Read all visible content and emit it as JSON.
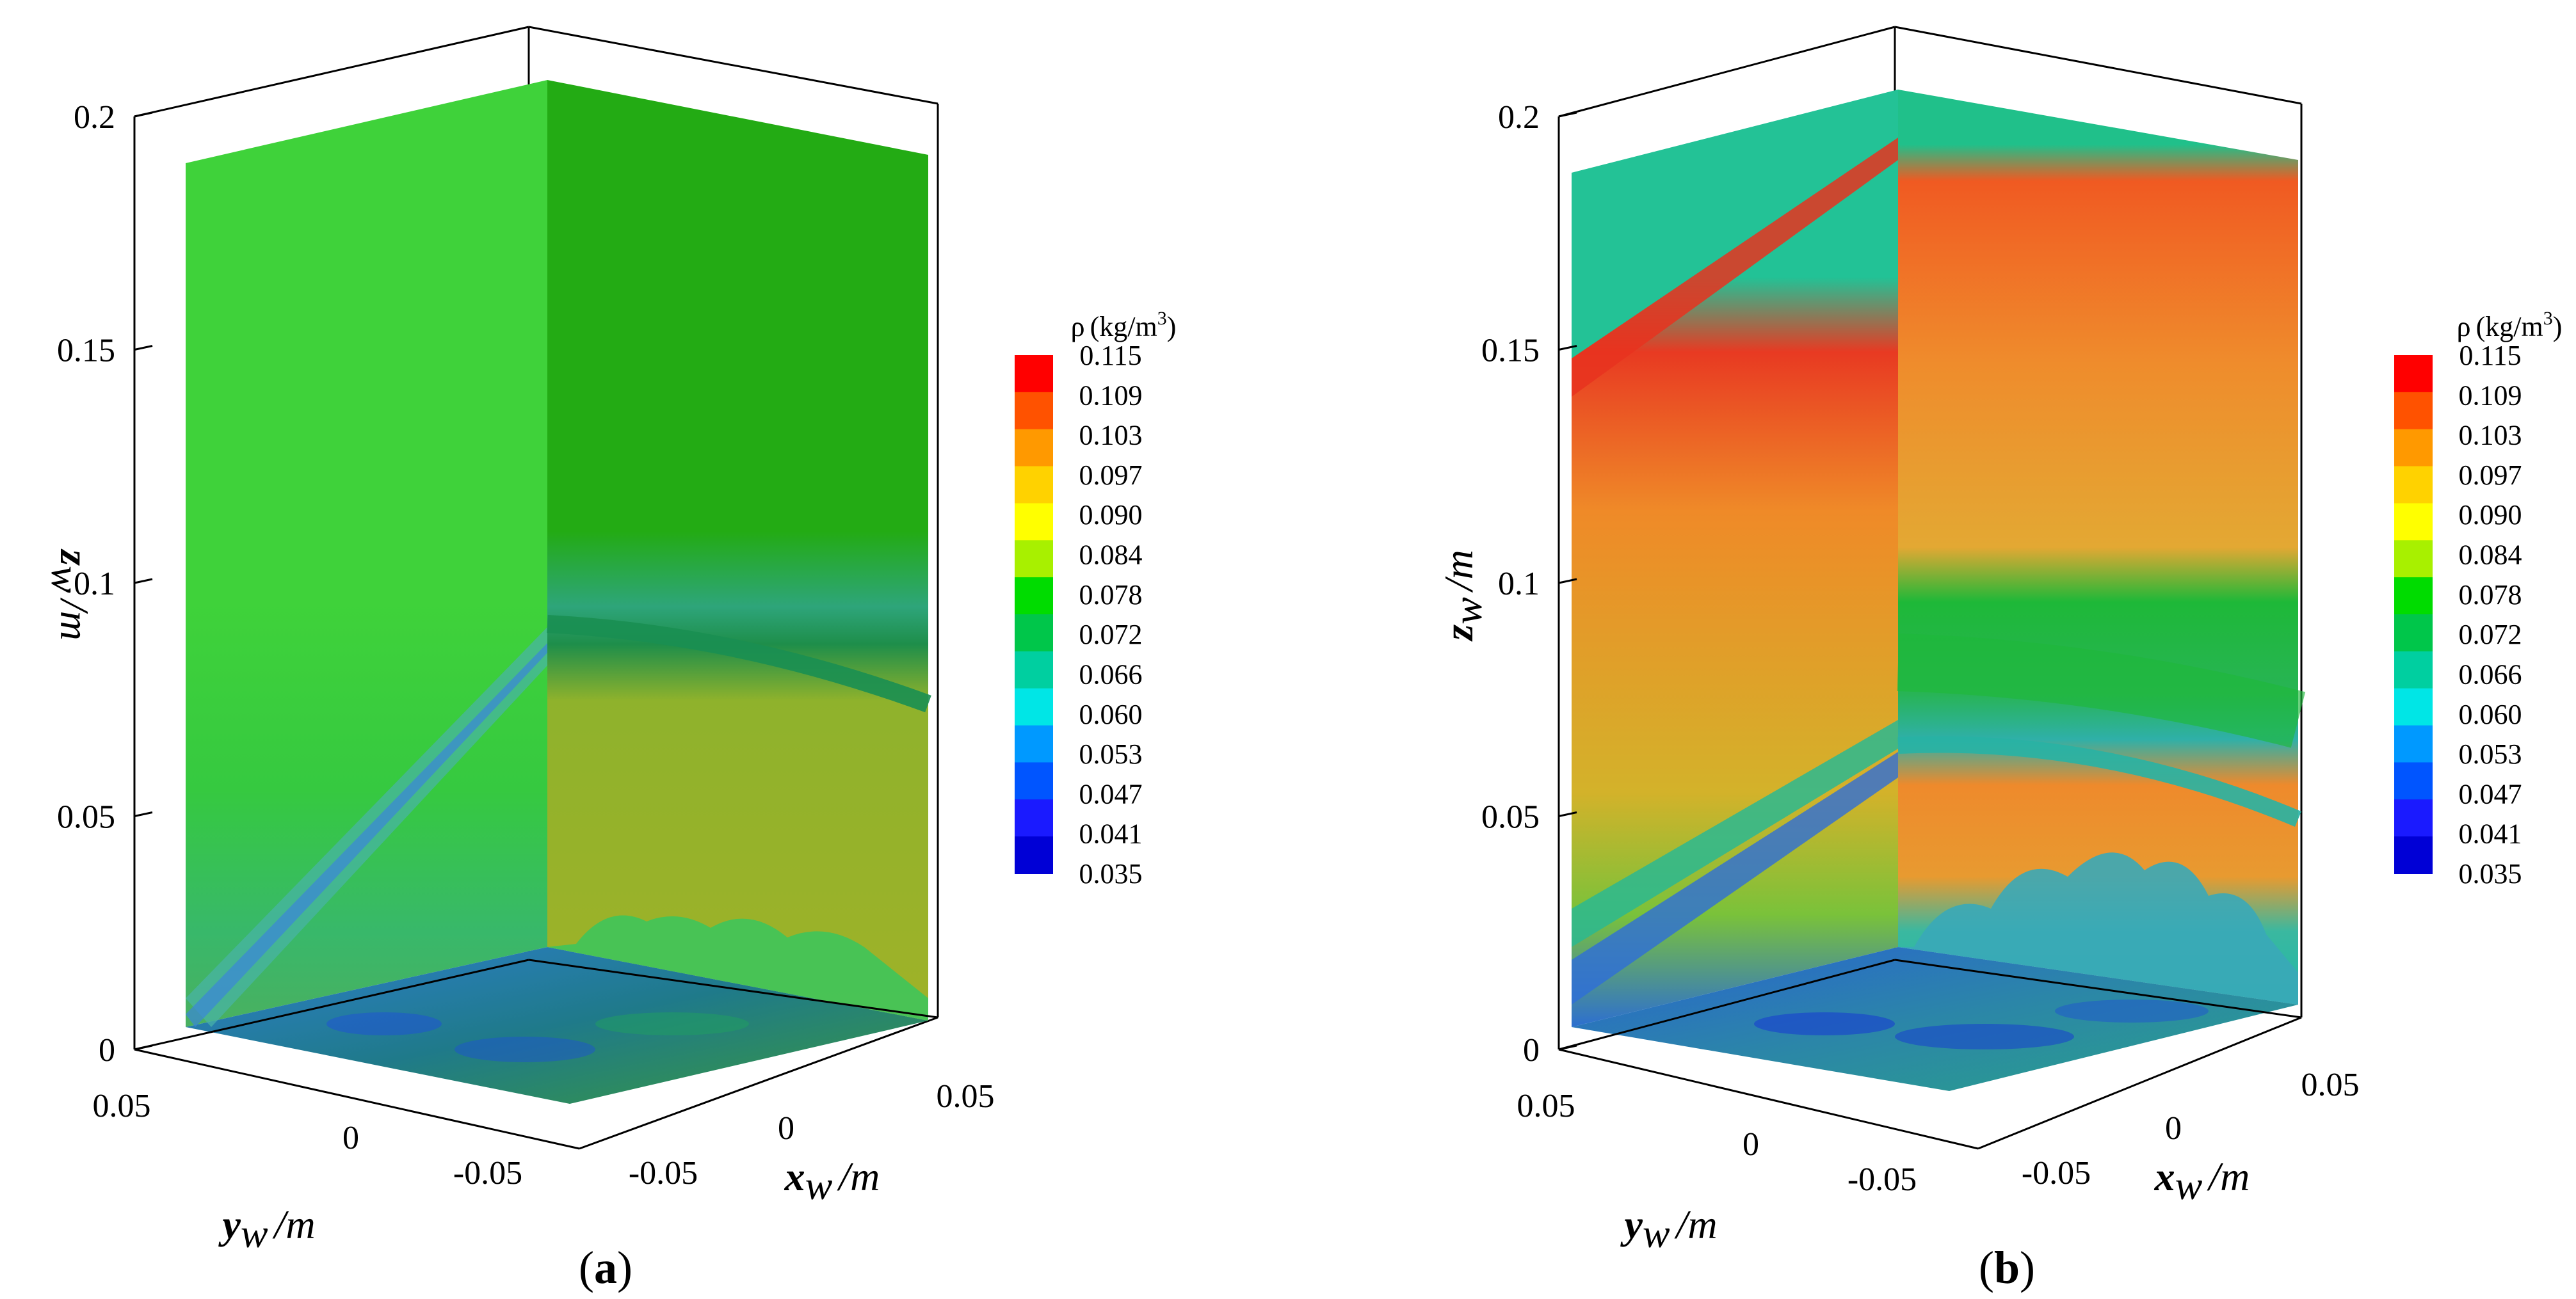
{
  "chart_data": [
    {
      "type": "contour",
      "panel": "(a)",
      "panel_letter": "a",
      "xlabel": "x",
      "xlabel_sub": "w",
      "xlabel_unit": "/m",
      "ylabel": "y",
      "ylabel_sub": "w",
      "ylabel_unit": "/m",
      "zlabel": "z",
      "zlabel_sub": "w",
      "zlabel_unit": "/m",
      "z_ticks": [
        "0",
        "0.05",
        "0.1",
        "0.15",
        "0.2"
      ],
      "z_tick_values": [
        0,
        0.05,
        0.1,
        0.15,
        0.2
      ],
      "zlim": [
        0,
        0.2
      ],
      "x_ticks": [
        "-0.05",
        "0",
        "0.05"
      ],
      "y_ticks": [
        "0.05",
        "0",
        "-0.05"
      ],
      "colorbar": {
        "symbol": "ρ",
        "unit_base": "(kg/m",
        "unit_exp": "3",
        "unit_close": ")",
        "levels": [
          "0.115",
          "0.109",
          "0.103",
          "0.097",
          "0.090",
          "0.084",
          "0.078",
          "0.072",
          "0.066",
          "0.060",
          "0.053",
          "0.047",
          "0.041",
          "0.035"
        ],
        "colors": [
          "#ff0000",
          "#ff5200",
          "#ff9900",
          "#ffd200",
          "#ffff00",
          "#a8f000",
          "#00dc00",
          "#00c64a",
          "#00cfa0",
          "#00e6e6",
          "#0099ff",
          "#0055ff",
          "#1a1aff",
          "#0000d6"
        ]
      }
    },
    {
      "type": "contour",
      "panel": "(b)",
      "panel_letter": "b",
      "xlabel": "x",
      "xlabel_sub": "w",
      "xlabel_unit": "/m",
      "ylabel": "y",
      "ylabel_sub": "w",
      "ylabel_unit": "/m",
      "zlabel": "z",
      "zlabel_sub": "w",
      "zlabel_unit": "/m",
      "z_ticks": [
        "0",
        "0.05",
        "0.1",
        "0.15",
        "0.2"
      ],
      "z_tick_values": [
        0,
        0.05,
        0.1,
        0.15,
        0.2
      ],
      "zlim": [
        0,
        0.2
      ],
      "x_ticks": [
        "-0.05",
        "0",
        "0.05"
      ],
      "y_ticks": [
        "0.05",
        "0",
        "-0.05"
      ],
      "colorbar": {
        "symbol": "ρ",
        "unit_base": "(kg/m",
        "unit_exp": "3",
        "unit_close": ")",
        "levels": [
          "0.115",
          "0.109",
          "0.103",
          "0.097",
          "0.090",
          "0.084",
          "0.078",
          "0.072",
          "0.066",
          "0.060",
          "0.053",
          "0.047",
          "0.041",
          "0.035"
        ],
        "colors": [
          "#ff0000",
          "#ff5200",
          "#ff9900",
          "#ffd200",
          "#ffff00",
          "#a8f000",
          "#00dc00",
          "#00c64a",
          "#00cfa0",
          "#00e6e6",
          "#0099ff",
          "#0055ff",
          "#1a1aff",
          "#0000d6"
        ]
      }
    }
  ]
}
